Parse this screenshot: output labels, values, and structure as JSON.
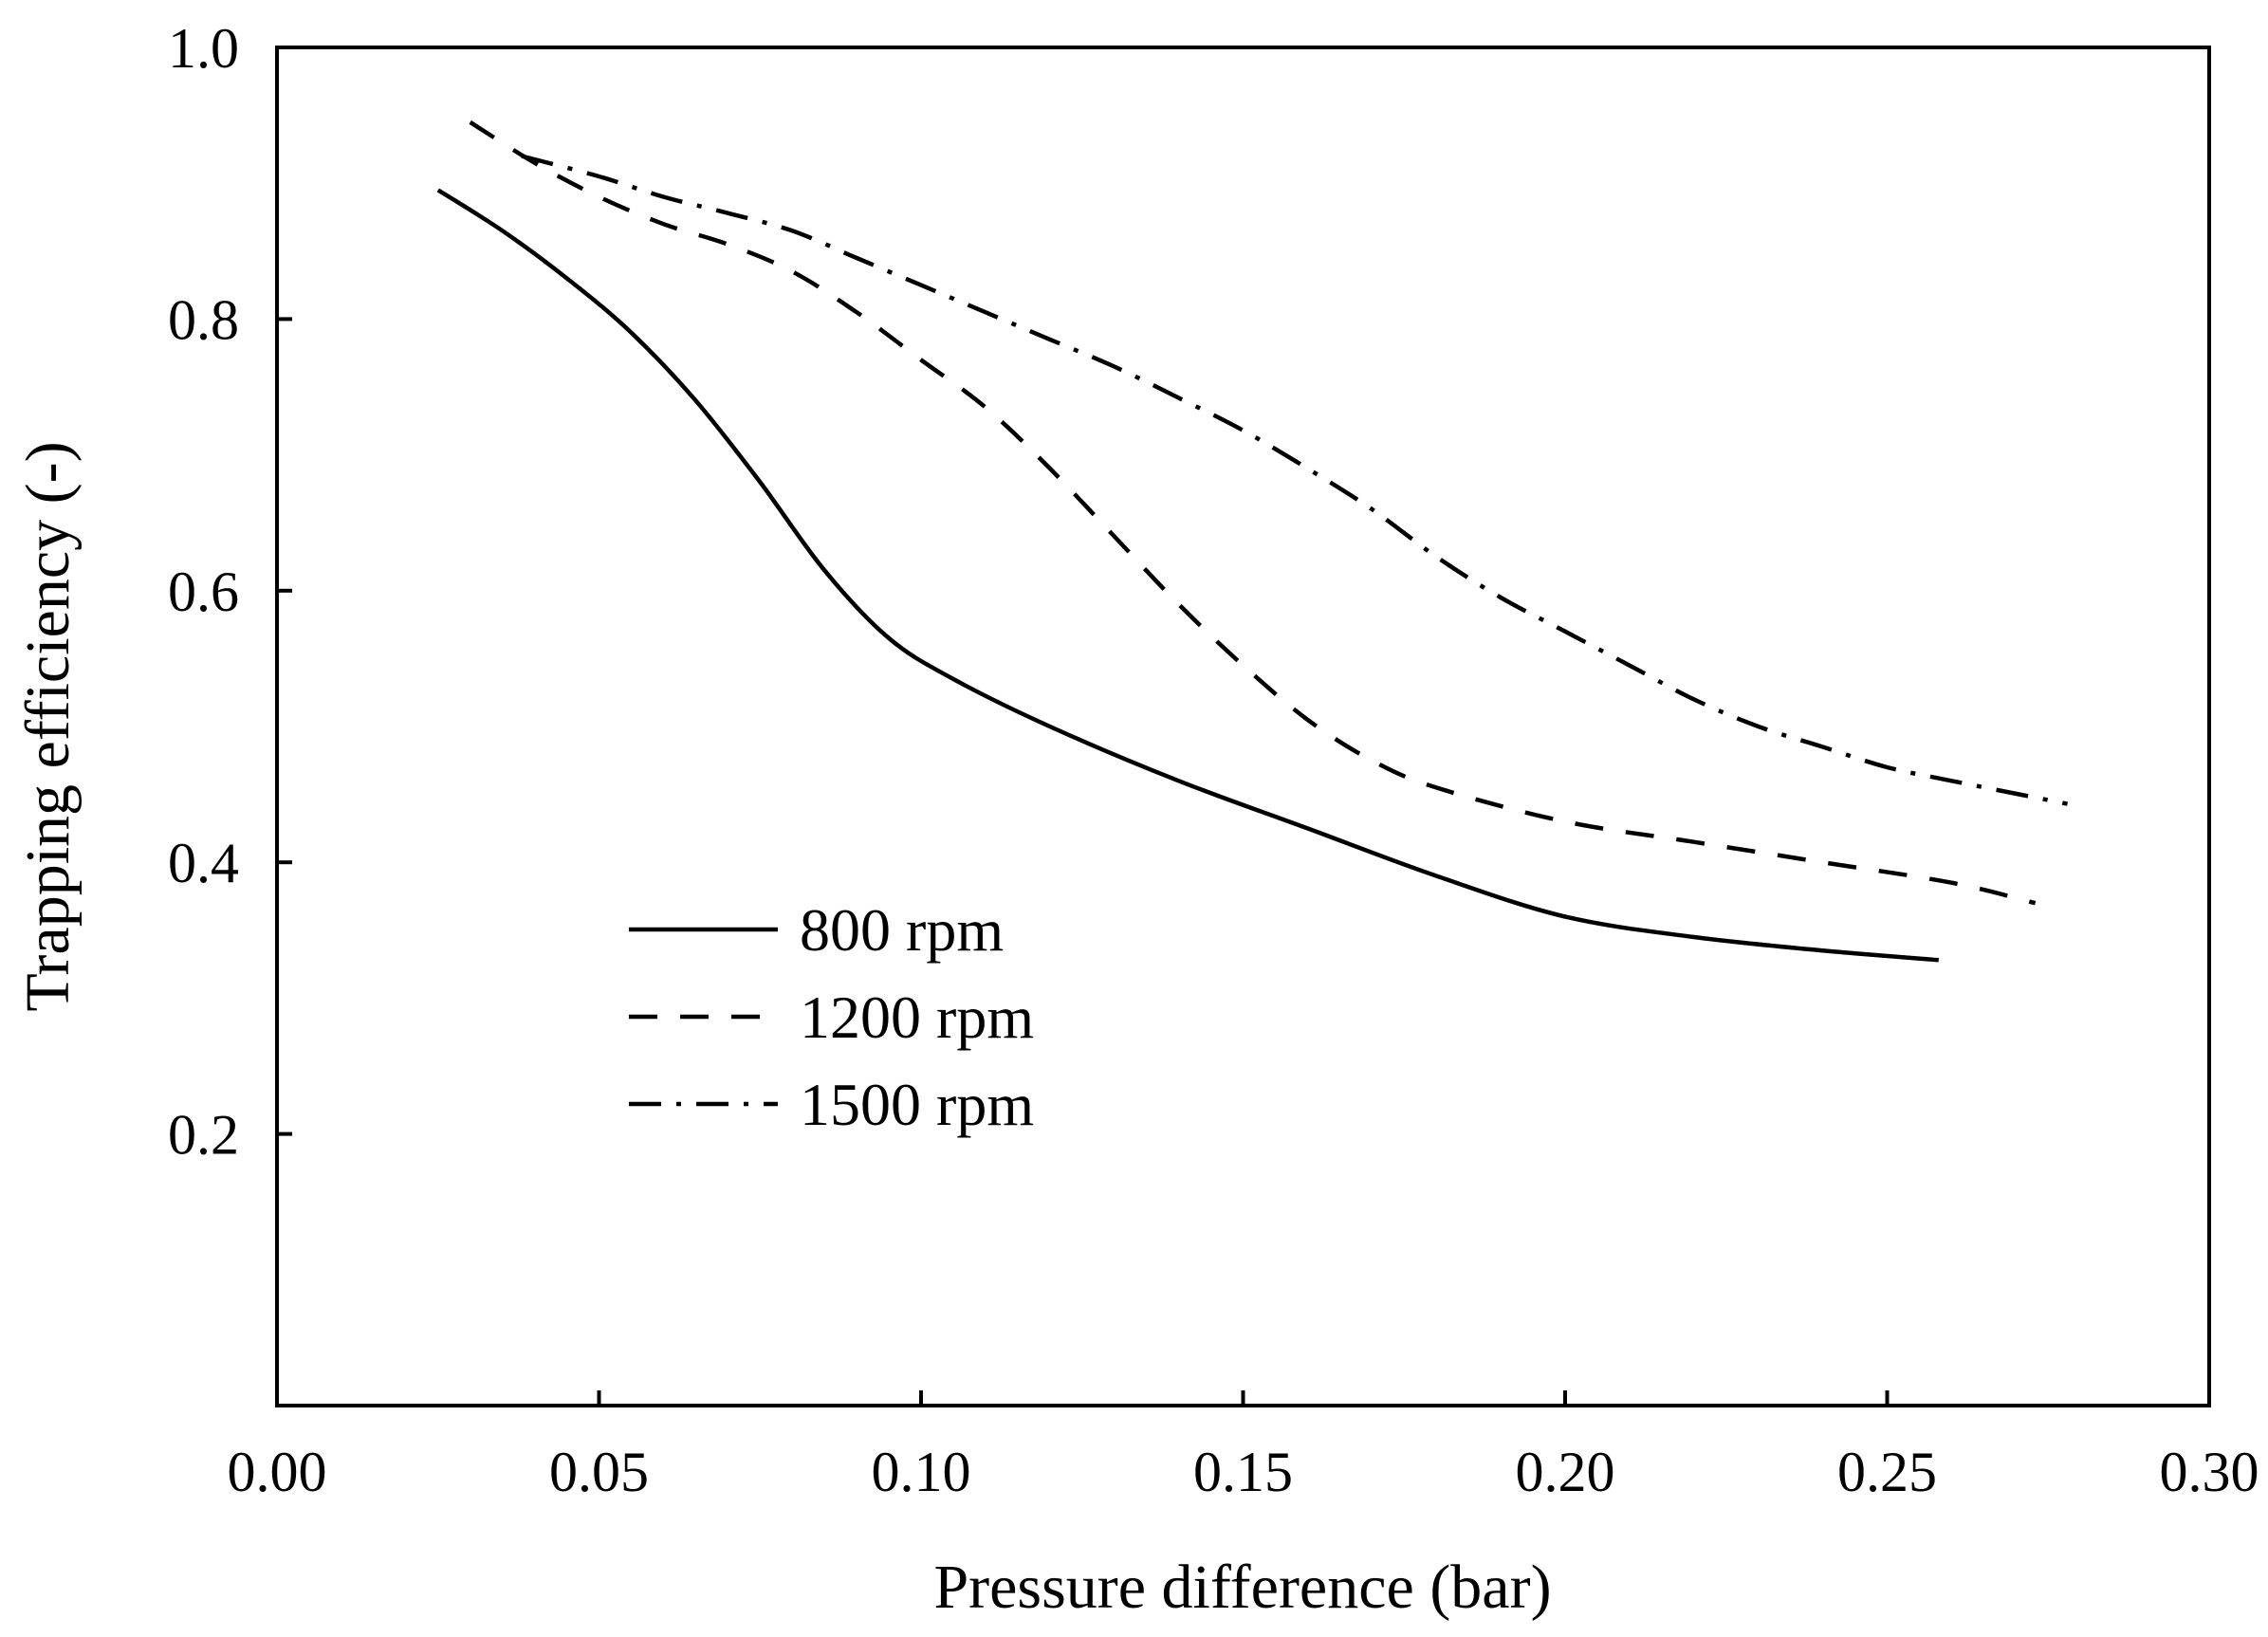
{
  "chart_data": {
    "type": "line",
    "title": "",
    "xlabel": "Pressure difference (bar)",
    "ylabel": "Trapping efficiency (-)",
    "xlim": [
      0.0,
      0.3
    ],
    "ylim": [
      0.0,
      1.0
    ],
    "grid": false,
    "legend_position": "center-left",
    "x_ticks": [
      "0.00",
      "0.05",
      "0.10",
      "0.15",
      "0.20",
      "0.25",
      "0.30"
    ],
    "x_tick_values": [
      0.0,
      0.05,
      0.1,
      0.15,
      0.2,
      0.25,
      0.3
    ],
    "y_ticks": [
      "0.2",
      "0.4",
      "0.6",
      "0.8",
      "1.0"
    ],
    "y_tick_values": [
      0.2,
      0.4,
      0.6,
      0.8,
      1.0
    ],
    "series": [
      {
        "name": "800 rpm",
        "style": "solid",
        "color": "#000000",
        "x": [
          0.025,
          0.035,
          0.045,
          0.055,
          0.065,
          0.075,
          0.085,
          0.095,
          0.105,
          0.12,
          0.14,
          0.16,
          0.18,
          0.2,
          0.22,
          0.24,
          0.258
        ],
        "y": [
          0.895,
          0.865,
          0.83,
          0.79,
          0.74,
          0.68,
          0.615,
          0.565,
          0.535,
          0.5,
          0.46,
          0.425,
          0.39,
          0.36,
          0.345,
          0.335,
          0.328
        ]
      },
      {
        "name": "1200 rpm",
        "style": "dashed",
        "color": "#000000",
        "x": [
          0.03,
          0.04,
          0.05,
          0.06,
          0.07,
          0.08,
          0.09,
          0.1,
          0.11,
          0.12,
          0.13,
          0.14,
          0.15,
          0.16,
          0.17,
          0.18,
          0.2,
          0.22,
          0.24,
          0.26,
          0.273
        ],
        "y": [
          0.945,
          0.915,
          0.89,
          0.87,
          0.855,
          0.835,
          0.805,
          0.77,
          0.735,
          0.69,
          0.64,
          0.59,
          0.545,
          0.505,
          0.475,
          0.455,
          0.43,
          0.415,
          0.4,
          0.385,
          0.37
        ]
      },
      {
        "name": "1500 rpm",
        "style": "dash-dot",
        "color": "#000000",
        "x": [
          0.038,
          0.05,
          0.06,
          0.07,
          0.08,
          0.09,
          0.1,
          0.11,
          0.12,
          0.13,
          0.14,
          0.15,
          0.16,
          0.17,
          0.18,
          0.19,
          0.2,
          0.21,
          0.22,
          0.23,
          0.24,
          0.25,
          0.26,
          0.278
        ],
        "y": [
          0.92,
          0.905,
          0.89,
          0.878,
          0.865,
          0.845,
          0.825,
          0.805,
          0.785,
          0.765,
          0.742,
          0.718,
          0.69,
          0.66,
          0.625,
          0.595,
          0.57,
          0.545,
          0.52,
          0.5,
          0.485,
          0.47,
          0.46,
          0.443
        ]
      }
    ]
  }
}
